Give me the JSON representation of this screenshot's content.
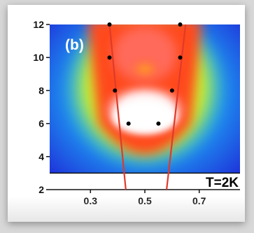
{
  "chart_data": {
    "type": "heatmap",
    "panel_label": "(b)",
    "annotation": "T=2K",
    "x_ticks": [
      "0.3",
      "0.5",
      "0.7"
    ],
    "x_tick_values": [
      0.3,
      0.5,
      0.7
    ],
    "y_ticks": [
      "2",
      "4",
      "6",
      "8",
      "10",
      "12"
    ],
    "y_tick_values": [
      2,
      4,
      6,
      8,
      10,
      12
    ],
    "xlim": [
      0.15,
      0.85
    ],
    "ylim": [
      2,
      12
    ],
    "colormap": [
      "#1e2bd8",
      "#1e8ff0",
      "#2fe0d0",
      "#e8f020",
      "#ff9a1a",
      "#ff2a1a",
      "#ffffff"
    ],
    "points": [
      {
        "x": 0.37,
        "y": 12
      },
      {
        "x": 0.63,
        "y": 12
      },
      {
        "x": 0.37,
        "y": 10
      },
      {
        "x": 0.63,
        "y": 10
      },
      {
        "x": 0.39,
        "y": 8
      },
      {
        "x": 0.6,
        "y": 8
      },
      {
        "x": 0.44,
        "y": 6
      },
      {
        "x": 0.55,
        "y": 6
      }
    ],
    "lines": [
      {
        "x": [
          0.37,
          0.43
        ],
        "y": [
          12,
          2
        ]
      },
      {
        "x": [
          0.65,
          0.58
        ],
        "y": [
          12,
          2
        ]
      }
    ],
    "line_color": "#e03a2a"
  }
}
